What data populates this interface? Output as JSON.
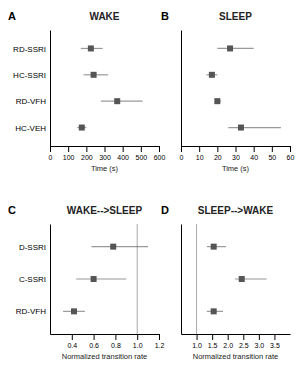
{
  "chart_data": [
    {
      "type": "forest",
      "title": "WAKE",
      "annotations": [
        "A"
      ],
      "xlabel": "Time (s)",
      "xlim": [
        0,
        600
      ],
      "xticks": [
        0,
        100,
        200,
        300,
        400,
        500,
        600
      ],
      "categories": [
        "RD-SSRI",
        "HC-SSRI",
        "RD-VFH",
        "HC-VEH"
      ],
      "values": [
        225,
        240,
        370,
        175
      ],
      "error_minus": [
        55,
        55,
        90,
        25
      ],
      "error_plus": [
        65,
        80,
        140,
        25
      ],
      "color": "#555555"
    },
    {
      "type": "forest",
      "title": "SLEEP",
      "annotations": [
        "B"
      ],
      "xlabel": "Time (s)",
      "xlim": [
        0,
        60
      ],
      "xticks": [
        0,
        10,
        20,
        30,
        40,
        50,
        60
      ],
      "categories": [
        null,
        null,
        null,
        null
      ],
      "values": [
        27,
        17,
        20,
        33
      ],
      "error_minus": [
        7,
        3,
        1,
        7
      ],
      "error_plus": [
        13,
        3,
        2,
        22
      ],
      "color": "#555555"
    },
    {
      "type": "forest",
      "title": "WAKE-->SLEEP",
      "annotations": [
        "C"
      ],
      "xlabel": "Normalized transition rate",
      "xlim": [
        0.2,
        1.2
      ],
      "xticks": [
        0.4,
        0.6,
        0.8,
        {
          "value": 1.0,
          "label": "1.0"
        },
        1.2
      ],
      "vline": 1.0,
      "categories": [
        "D-SSRI",
        "C-SSRI",
        "RD-VFH"
      ],
      "values": [
        0.78,
        0.6,
        0.42
      ],
      "error_minus": [
        0.2,
        0.16,
        0.1
      ],
      "error_plus": [
        0.32,
        0.3,
        0.1
      ],
      "color": "#555555"
    },
    {
      "type": "forest",
      "title": "SLEEP-->WAKE",
      "annotations": [
        "D"
      ],
      "xlabel": "Normalized transition rate",
      "xlim": [
        0.5,
        4.0
      ],
      "xticks": [
        {
          "value": 1.0,
          "label": "1.0"
        },
        1.5,
        {
          "value": 2.0,
          "label": "2.0"
        },
        2.5,
        {
          "value": 3.0,
          "label": "3.0"
        },
        3.5
      ],
      "vline": 1.0,
      "categories": [
        null,
        null,
        null
      ],
      "values": [
        1.55,
        2.45,
        1.55
      ],
      "error_minus": [
        0.22,
        0.22,
        0.22
      ],
      "error_plus": [
        0.4,
        0.8,
        0.3
      ],
      "color": "#555555"
    }
  ]
}
